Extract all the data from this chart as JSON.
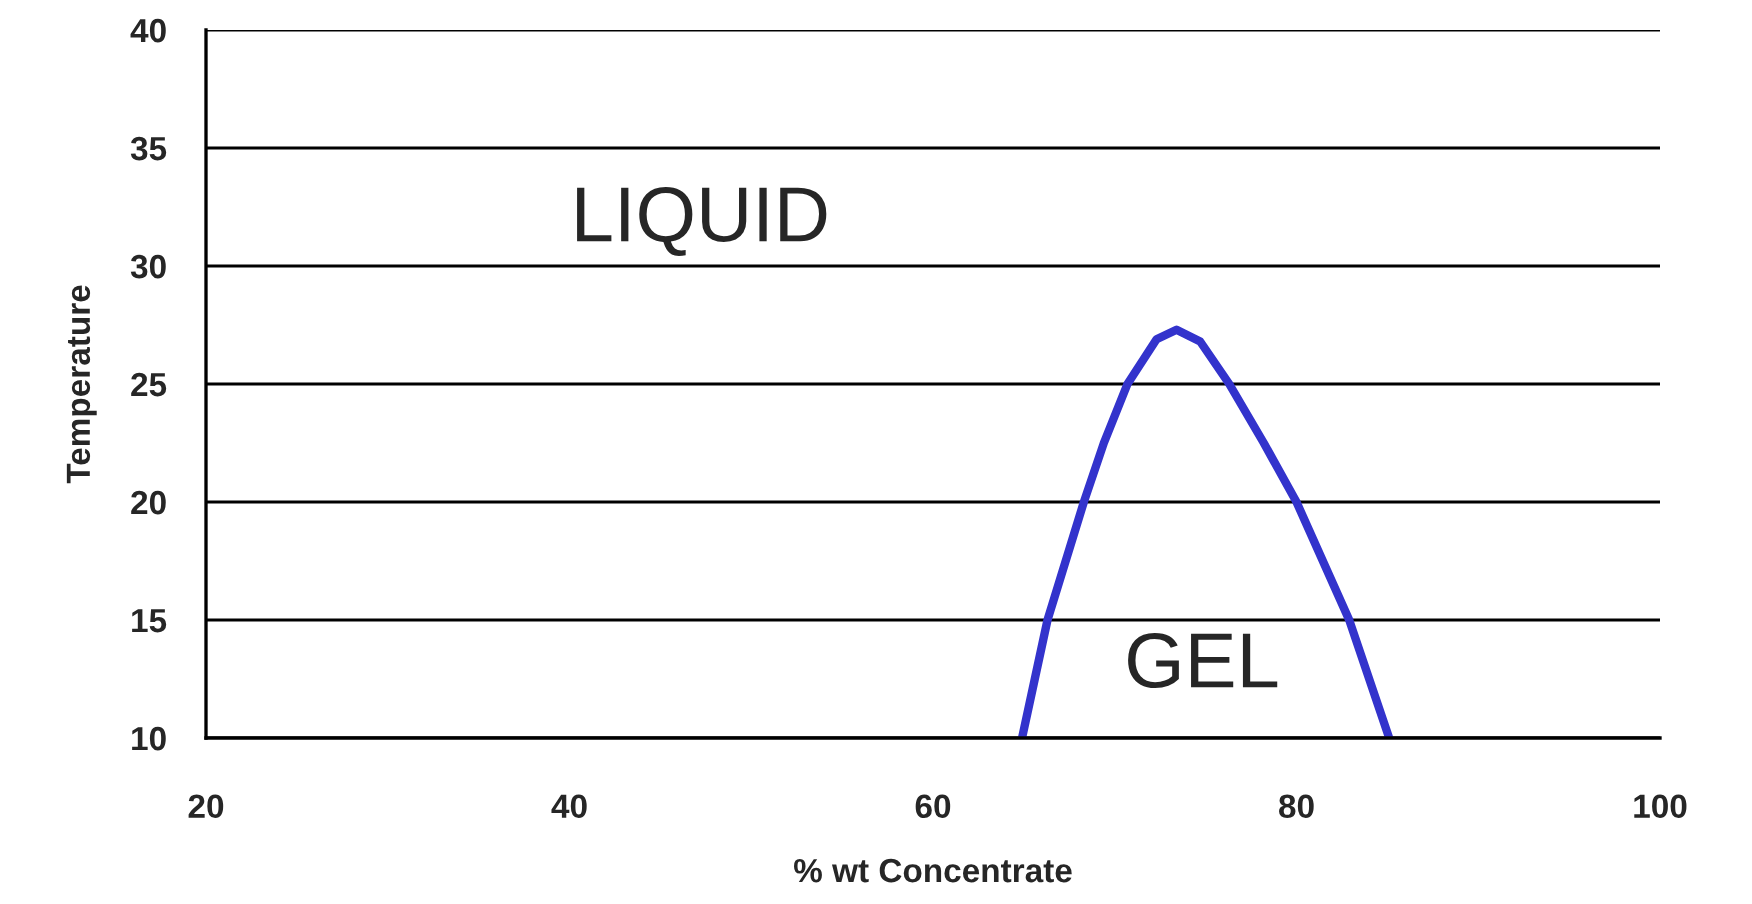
{
  "chart_data": {
    "type": "line",
    "xlabel": "% wt Concentrate",
    "ylabel": "Temperature",
    "xlim": [
      20,
      100
    ],
    "xticks": [
      20,
      40,
      60,
      80,
      100
    ],
    "ylim": [
      10,
      40
    ],
    "yticks": [
      10,
      15,
      20,
      25,
      30,
      35,
      40
    ],
    "grid": "y",
    "marker": "none",
    "line_style": "solid",
    "annotations": [
      "LIQUID",
      "GEL"
    ],
    "series": [
      {
        "color": "#3333cc",
        "x": [
          64.9,
          65.6,
          66.3,
          68.3,
          69.4,
          70.7,
          72.3,
          73.4,
          74.7,
          76.3,
          78.2,
          80.0,
          82.9,
          85.1
        ],
        "values": [
          10.0,
          12.5,
          15.0,
          20.0,
          22.5,
          25.0,
          26.9,
          27.3,
          26.8,
          25.0,
          22.5,
          20.0,
          15.0,
          10.0
        ]
      }
    ]
  }
}
